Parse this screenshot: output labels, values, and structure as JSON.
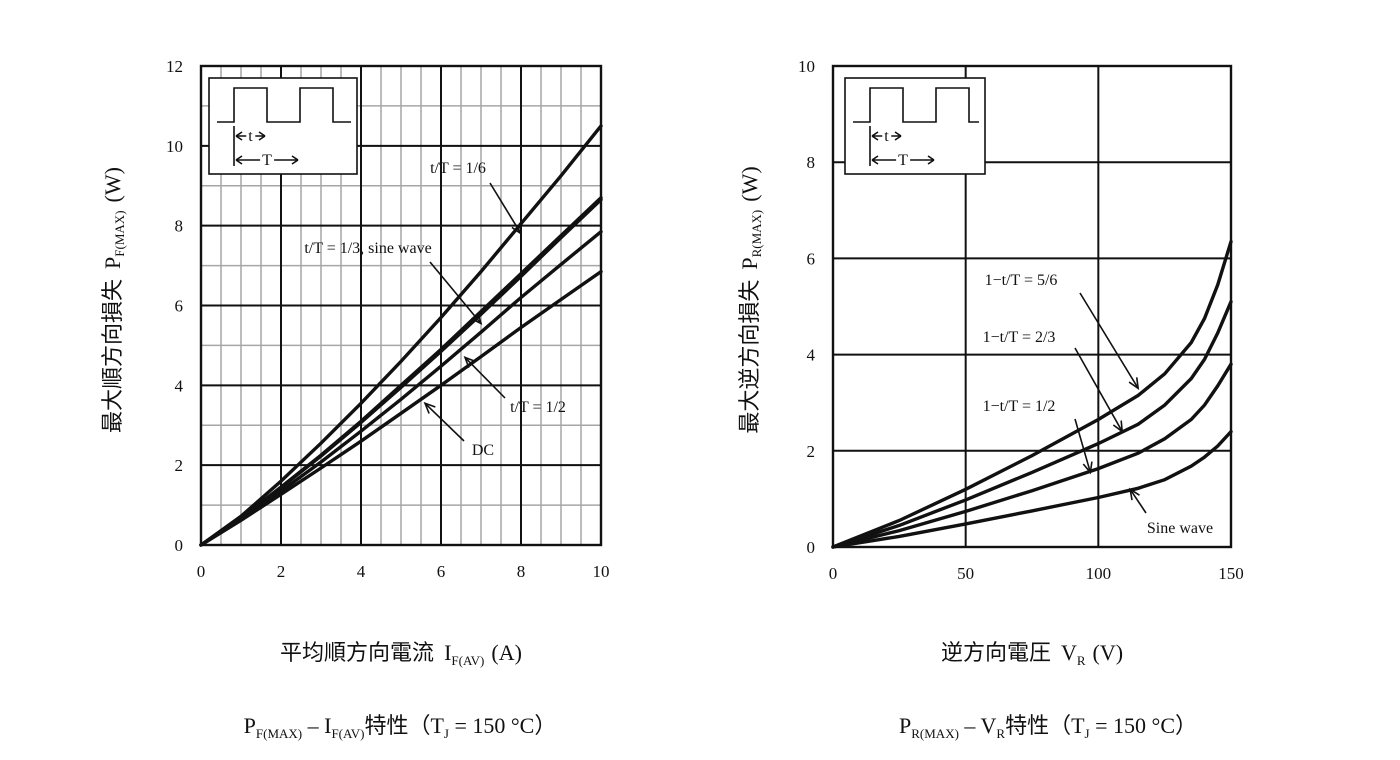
{
  "chart_data": [
    {
      "type": "line",
      "ylabel_main": "最大順方向損失",
      "ylabel_sym": "P",
      "ylabel_sub": "F(MAX)",
      "ylabel_unit": "(W)",
      "xlabel_main": "平均順方向電流",
      "xlabel_sym": "I",
      "xlabel_sub": "F(AV)",
      "xlabel_unit": "(A)",
      "caption_p": "P",
      "caption_p_sub": "F(MAX)",
      "caption_mid": " – I",
      "caption_i_sub": "F(AV)",
      "caption_rest": "特性（T",
      "caption_tj_sub": "J",
      "caption_end": " = 150 °C）",
      "xlim": [
        0,
        10
      ],
      "ylim": [
        0,
        12
      ],
      "xticks": [
        "0",
        "2",
        "4",
        "6",
        "8",
        "10"
      ],
      "yticks": [
        "0",
        "2",
        "4",
        "6",
        "8",
        "10",
        "12"
      ],
      "grid": "minor and major",
      "inset": {
        "t_label": "t",
        "T_label": "T"
      },
      "series": [
        {
          "name": "t/T = 1/6",
          "x": [
            0,
            1,
            2,
            3,
            4,
            5,
            6,
            7,
            8,
            9,
            10
          ],
          "y": [
            0,
            0.72,
            1.6,
            2.55,
            3.55,
            4.6,
            5.7,
            6.85,
            8.05,
            9.25,
            10.5
          ]
        },
        {
          "name": "t/T = 1/3, sine wave",
          "x": [
            0,
            1,
            2,
            3,
            4,
            5,
            6,
            7,
            8,
            9,
            10
          ],
          "y": [
            0,
            0.68,
            1.45,
            2.25,
            3.1,
            4.0,
            4.9,
            5.85,
            6.8,
            7.75,
            8.7
          ]
        },
        {
          "name": "t/T = 1/3, sine wave",
          "x": [
            0,
            1,
            2,
            3,
            4,
            5,
            6,
            7,
            8,
            9,
            10
          ],
          "y": [
            0,
            0.68,
            1.44,
            2.23,
            3.07,
            3.95,
            4.85,
            5.78,
            6.73,
            7.7,
            8.65
          ]
        },
        {
          "name": "t/T = 1/2",
          "x": [
            0,
            1,
            2,
            3,
            4,
            5,
            6,
            7,
            8,
            9,
            10
          ],
          "y": [
            0,
            0.65,
            1.35,
            2.08,
            2.85,
            3.65,
            4.48,
            5.33,
            6.2,
            7.03,
            7.85
          ]
        },
        {
          "name": "DC",
          "x": [
            0,
            1,
            2,
            3,
            4,
            5,
            6,
            7,
            8,
            9,
            10
          ],
          "y": [
            0,
            0.62,
            1.27,
            1.93,
            2.6,
            3.3,
            4.0,
            4.72,
            5.45,
            6.15,
            6.85
          ]
        }
      ],
      "annotations": [
        {
          "label": "t/T = 1/6",
          "target": [
            8.0,
            7.8
          ]
        },
        {
          "label": "t/T = 1/3, sine wave",
          "target": [
            7.0,
            5.55
          ]
        },
        {
          "label": "t/T = 1/2",
          "target": [
            6.6,
            4.7
          ]
        },
        {
          "label": "DC",
          "target": [
            5.6,
            3.55
          ]
        }
      ]
    },
    {
      "type": "line",
      "ylabel_main": "最大逆方向損失",
      "ylabel_sym": "P",
      "ylabel_sub": "R(MAX)",
      "ylabel_unit": "(W)",
      "xlabel_main": "逆方向電圧",
      "xlabel_sym": "V",
      "xlabel_sub": "R",
      "xlabel_unit": "(V)",
      "caption_p": "P",
      "caption_p_sub": "R(MAX)",
      "caption_mid": " – V",
      "caption_i_sub": "R",
      "caption_rest": "特性（T",
      "caption_tj_sub": "J",
      "caption_end": " = 150 °C）",
      "xlim": [
        0,
        150
      ],
      "ylim": [
        0,
        10
      ],
      "xticks": [
        "0",
        "50",
        "100",
        "150"
      ],
      "yticks": [
        "0",
        "2",
        "4",
        "6",
        "8",
        "10"
      ],
      "grid": "major",
      "inset": {
        "t_label": "t",
        "T_label": "T"
      },
      "series": [
        {
          "name": "1−t/T = 5/6",
          "x": [
            0,
            25,
            50,
            75,
            100,
            115,
            125,
            135,
            140,
            145,
            150
          ],
          "y": [
            0,
            0.55,
            1.2,
            1.9,
            2.65,
            3.15,
            3.6,
            4.25,
            4.75,
            5.45,
            6.35
          ]
        },
        {
          "name": "1−t/T = 2/3",
          "x": [
            0,
            25,
            50,
            75,
            100,
            115,
            125,
            135,
            140,
            145,
            150
          ],
          "y": [
            0,
            0.45,
            0.98,
            1.55,
            2.15,
            2.55,
            2.95,
            3.5,
            3.9,
            4.45,
            5.1
          ]
        },
        {
          "name": "1−t/T = 1/2",
          "x": [
            0,
            25,
            50,
            75,
            100,
            115,
            125,
            135,
            140,
            145,
            150
          ],
          "y": [
            0,
            0.34,
            0.74,
            1.17,
            1.63,
            1.95,
            2.25,
            2.65,
            2.95,
            3.35,
            3.8
          ]
        },
        {
          "name": "Sine wave",
          "x": [
            0,
            25,
            50,
            75,
            100,
            115,
            125,
            135,
            140,
            145,
            150
          ],
          "y": [
            0,
            0.22,
            0.48,
            0.75,
            1.03,
            1.22,
            1.4,
            1.68,
            1.87,
            2.1,
            2.4
          ]
        }
      ],
      "annotations": [
        {
          "label": "1−t/T = 5/6",
          "target": [
            115,
            3.3
          ]
        },
        {
          "label": "1−t/T = 2/3",
          "target": [
            109,
            2.4
          ]
        },
        {
          "label": "1−t/T = 1/2",
          "target": [
            97,
            1.55
          ]
        },
        {
          "label": "Sine wave",
          "target": [
            112,
            1.2
          ]
        }
      ]
    }
  ]
}
